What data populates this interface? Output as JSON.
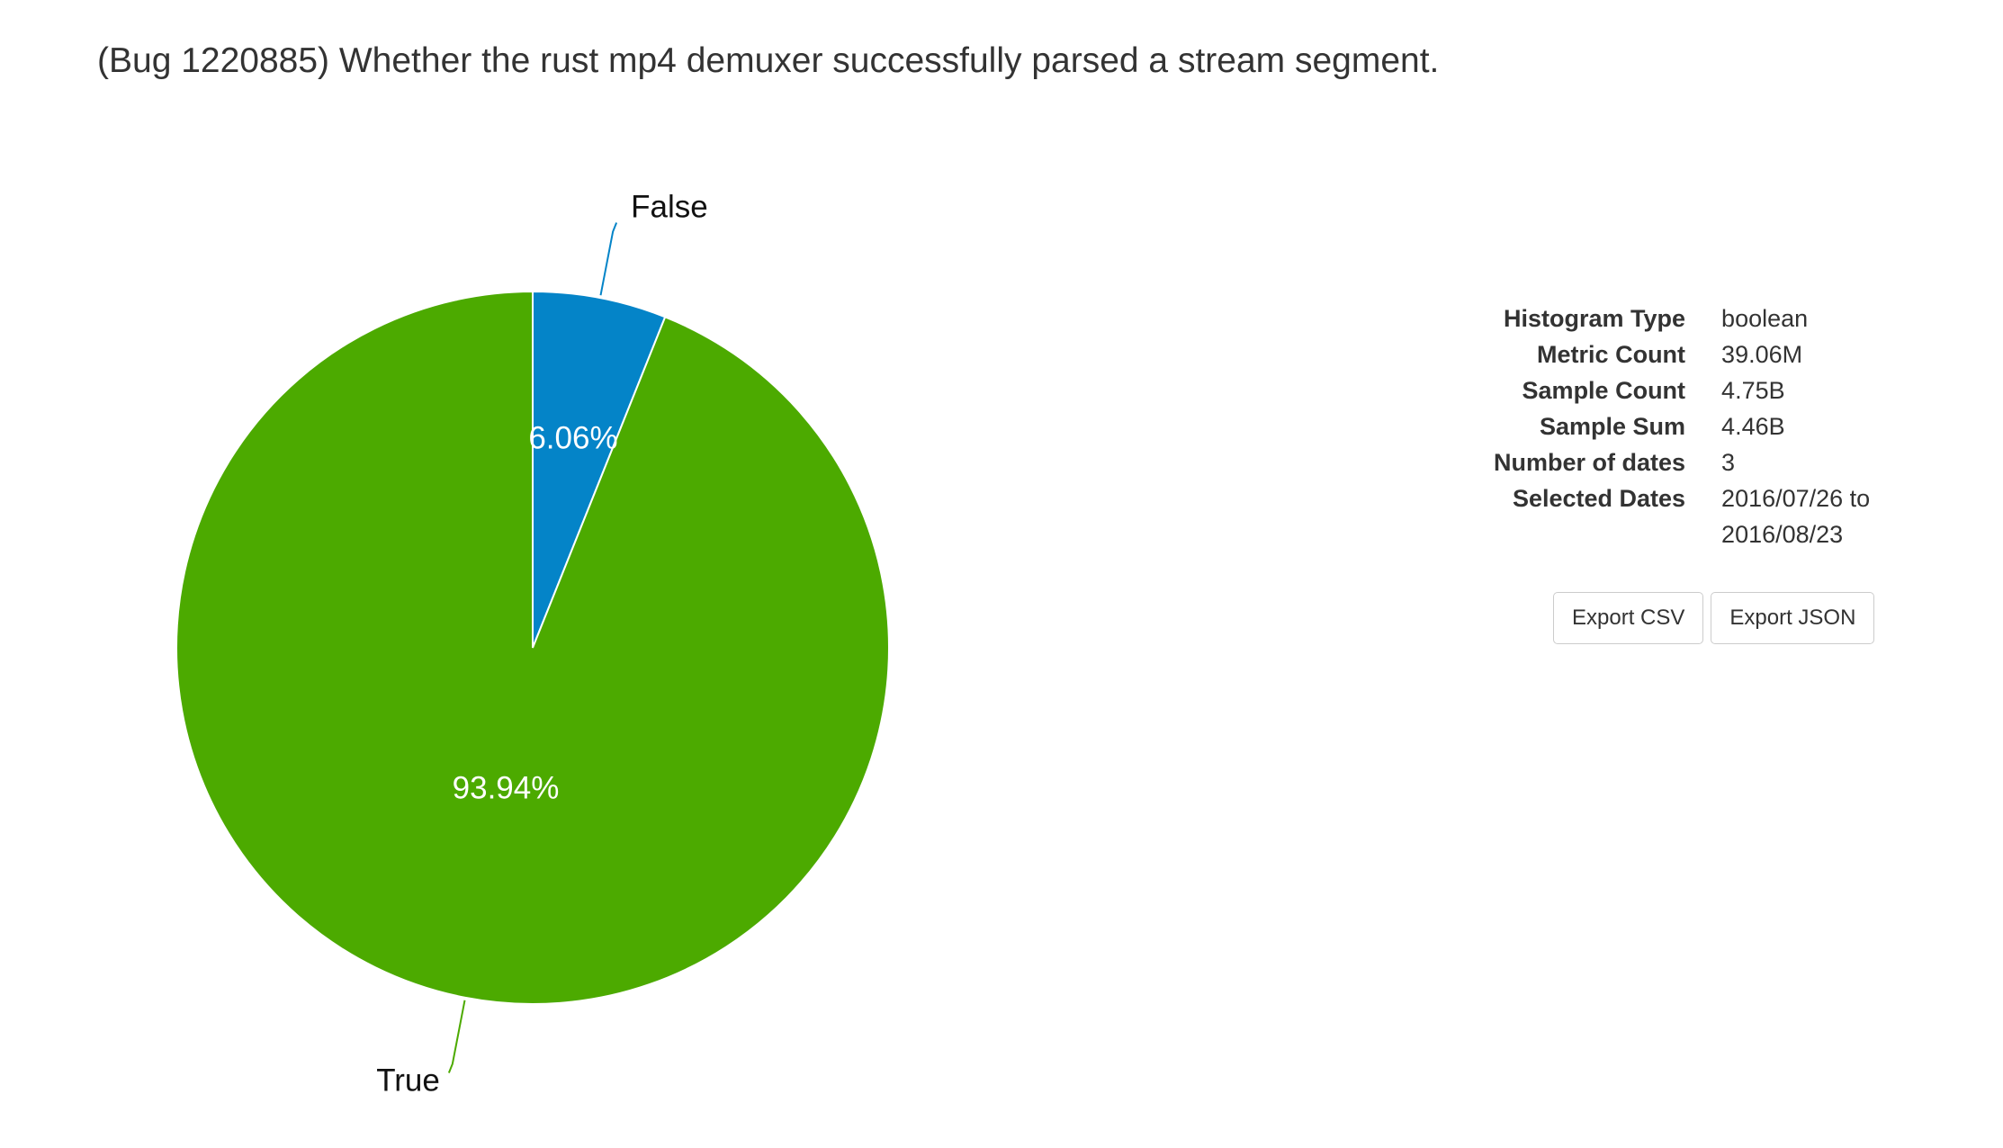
{
  "title": "(Bug 1220885) Whether the rust mp4 demuxer successfully parsed a stream segment.",
  "chart_data": {
    "type": "pie",
    "title": "",
    "slices": [
      {
        "label": "False",
        "value": 6.06,
        "display": "6.06%",
        "color": "#0484c8"
      },
      {
        "label": "True",
        "value": 93.94,
        "display": "93.94%",
        "color": "#4caa00"
      }
    ]
  },
  "details": {
    "rows": [
      {
        "key": "Histogram Type",
        "value": "boolean"
      },
      {
        "key": "Metric Count",
        "value": "39.06M"
      },
      {
        "key": "Sample Count",
        "value": "4.75B"
      },
      {
        "key": "Sample Sum",
        "value": "4.46B"
      },
      {
        "key": "Number of dates",
        "value": "3"
      },
      {
        "key": "Selected Dates",
        "value": "2016/07/26 to 2016/08/23"
      }
    ]
  },
  "buttons": {
    "export_csv": "Export CSV",
    "export_json": "Export JSON"
  }
}
